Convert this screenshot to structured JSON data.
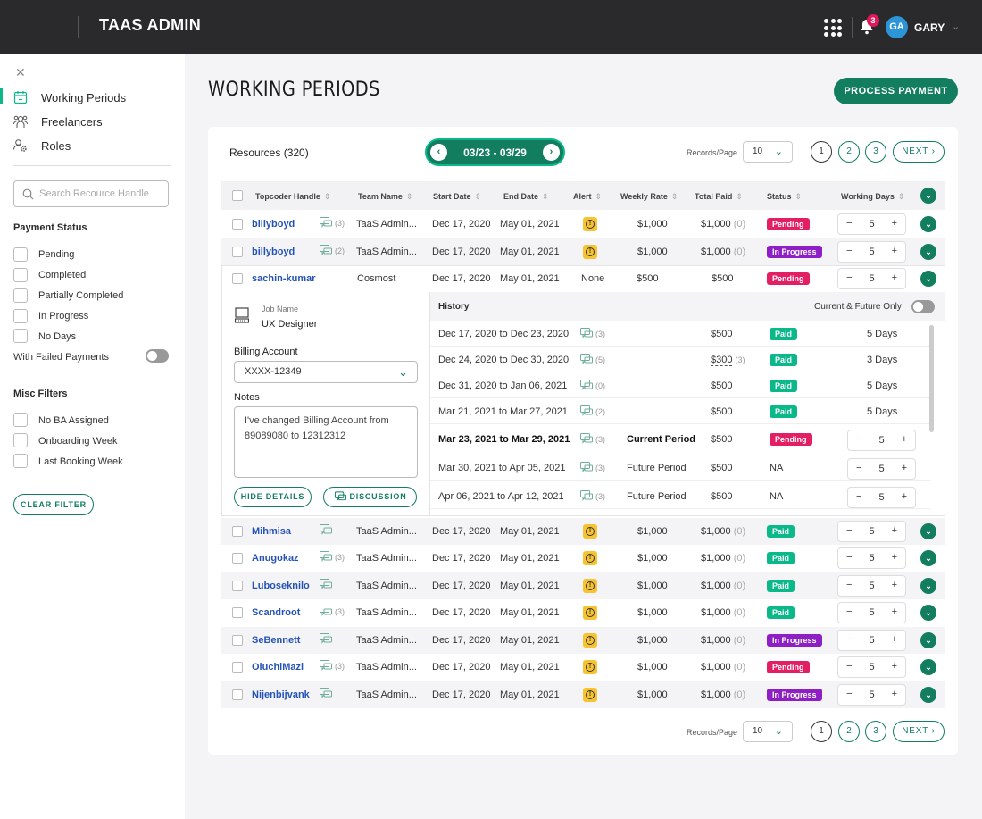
{
  "header": {
    "app_title": "TAAS ADMIN",
    "notification_count": "3",
    "user_initials": "GA",
    "user_name": "GARY"
  },
  "sidebar": {
    "nav": [
      {
        "label": "Working Periods",
        "active": true
      },
      {
        "label": "Freelancers"
      },
      {
        "label": "Roles"
      }
    ],
    "search_placeholder": "Search Recource Handle",
    "payment_status_title": "Payment Status",
    "payment_status": [
      "Pending",
      "Completed",
      "Partially Completed",
      "In Progress",
      "No Days"
    ],
    "failed_payments_label": "With Failed Payments",
    "misc_title": "Misc Filters",
    "misc": [
      "No BA Assigned",
      "Onboarding Week",
      "Last Booking Week"
    ],
    "clear_filter": "CLEAR FILTER"
  },
  "page": {
    "title": "WORKING PERIODS",
    "process_payment": "PROCESS PAYMENT"
  },
  "toolbar": {
    "resources": "Resources (320)",
    "week": "03/23 - 03/29",
    "records_label": "Records/Page",
    "records_value": "10",
    "pages": [
      "1",
      "2",
      "3"
    ],
    "next": "NEXT"
  },
  "table": {
    "columns": [
      "Topcoder Handle",
      "Team Name",
      "Start Date",
      "End Date",
      "Alert",
      "Weekly Rate",
      "Total Paid",
      "Status",
      "Working Days"
    ],
    "rows": [
      {
        "handle": "billyboyd",
        "msgs": "(3)",
        "team": "TaaS Admin...",
        "start": "Dec 17, 2020",
        "end": "May 01, 2021",
        "rate": "$1,000",
        "paid": "$1,000",
        "paid_count": "(0)",
        "status": "Pending",
        "days": "5"
      },
      {
        "handle": "billyboyd",
        "msgs": "(2)",
        "team": "TaaS Admin...",
        "start": "Dec 17, 2020",
        "end": "May 01, 2021",
        "rate": "$1,000",
        "paid": "$1,000",
        "paid_count": "(0)",
        "status": "In Progress",
        "days": "5"
      },
      {
        "handle": "sachin-kumar",
        "team": "Cosmost",
        "start": "Dec 17, 2020",
        "end": "May 01, 2021",
        "alert": "None",
        "rate": "$500",
        "paid": "$500",
        "status": "Pending",
        "days": "5"
      },
      {
        "handle": "Mihmisa",
        "msgs": "",
        "team": "TaaS Admin...",
        "start": "Dec 17, 2020",
        "end": "May 01, 2021",
        "rate": "$1,000",
        "paid": "$1,000",
        "paid_count": "(0)",
        "status": "Paid",
        "days": "5"
      },
      {
        "handle": "Anugokaz",
        "msgs": "(3)",
        "team": "TaaS Admin...",
        "start": "Dec 17, 2020",
        "end": "May 01, 2021",
        "rate": "$1,000",
        "paid": "$1,000",
        "paid_count": "(0)",
        "status": "Paid",
        "days": "5"
      },
      {
        "handle": "Luboseknilo",
        "msgs": "",
        "team": "TaaS Admin...",
        "start": "Dec 17, 2020",
        "end": "May 01, 2021",
        "rate": "$1,000",
        "paid": "$1,000",
        "paid_count": "(0)",
        "status": "Paid",
        "days": "5"
      },
      {
        "handle": "Scandroot",
        "msgs": "(3)",
        "team": "TaaS Admin...",
        "start": "Dec 17, 2020",
        "end": "May 01, 2021",
        "rate": "$1,000",
        "paid": "$1,000",
        "paid_count": "(0)",
        "status": "Paid",
        "days": "5"
      },
      {
        "handle": "SeBennett",
        "msgs": "",
        "team": "TaaS Admin...",
        "start": "Dec 17, 2020",
        "end": "May 01, 2021",
        "rate": "$1,000",
        "paid": "$1,000",
        "paid_count": "(0)",
        "status": "In Progress",
        "days": "5"
      },
      {
        "handle": "OluchiMazi",
        "msgs": "(3)",
        "team": "TaaS Admin...",
        "start": "Dec 17, 2020",
        "end": "May 01, 2021",
        "rate": "$1,000",
        "paid": "$1,000",
        "paid_count": "(0)",
        "status": "Pending",
        "days": "5"
      },
      {
        "handle": "Nijenbijvank",
        "msgs": "",
        "team": "TaaS Admin...",
        "start": "Dec 17, 2020",
        "end": "May 01, 2021",
        "rate": "$1,000",
        "paid": "$1,000",
        "paid_count": "(0)",
        "status": "In Progress",
        "days": "5"
      }
    ]
  },
  "detail": {
    "job_label": "Job Name",
    "job_value": "UX Designer",
    "billing_label": "Billing Account",
    "billing_value": "XXXX-12349",
    "notes_label": "Notes",
    "notes_value": "I've changed Billing Account from 89089080 to 12312312",
    "hide_details": "HIDE DETAILS",
    "discussion": "DISCUSSION",
    "history_title": "History",
    "toggle_label": "Current & Future Only",
    "history": [
      {
        "period": "Dec 17, 2020 to Dec 23, 2020",
        "msgs": "(3)",
        "tag": "",
        "amount": "$500",
        "status": "Paid",
        "days": "5 Days"
      },
      {
        "period": "Dec 24, 2020 to Dec 30, 2020",
        "msgs": "(5)",
        "tag": "",
        "amount": "$300",
        "amount_count": "(3)",
        "status": "Paid",
        "days": "3 Days"
      },
      {
        "period": "Dec 31, 2020 to Jan 06, 2021",
        "msgs": "(0)",
        "tag": "",
        "amount": "$500",
        "status": "Paid",
        "days": "5 Days"
      },
      {
        "period": "Mar 21, 2021 to Mar 27, 2021",
        "msgs": "(2)",
        "tag": "",
        "amount": "$500",
        "status": "Paid",
        "days": "5 Days"
      },
      {
        "period": "Mar 23, 2021 to Mar 29, 2021",
        "msgs": "(3)",
        "tag": "Current Period",
        "amount": "$500",
        "status": "Pending",
        "days": "5"
      },
      {
        "period": "Mar 30, 2021 to Apr 05, 2021",
        "msgs": "(3)",
        "tag": "Future Period",
        "amount": "$500",
        "status": "NA",
        "days": "5"
      },
      {
        "period": "Apr 06, 2021 to Apr 12, 2021",
        "msgs": "(3)",
        "tag": "Future Period",
        "amount": "$500",
        "status": "NA",
        "days": "5"
      }
    ]
  },
  "colors": {
    "brand": "#137d60",
    "accent": "#0ab88a",
    "pending": "#e21f62",
    "in_progress": "#8e1fc4",
    "paid": "#0ab88a",
    "alert": "#f7c331",
    "link": "#2553b5"
  }
}
